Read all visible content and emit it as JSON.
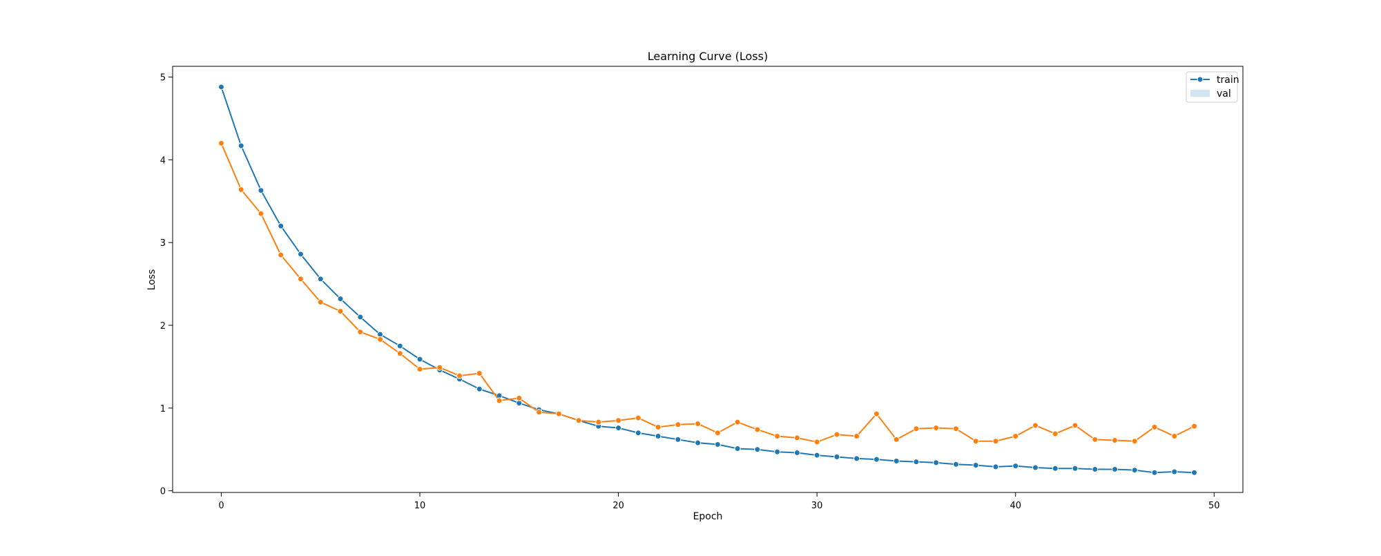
{
  "chart_data": {
    "type": "line",
    "title": "Learning Curve (Loss)",
    "xlabel": "Epoch",
    "ylabel": "Loss",
    "xlim": [
      -2.45,
      51.45
    ],
    "ylim": [
      -0.02,
      5.13
    ],
    "xticks": [
      0,
      10,
      20,
      30,
      40,
      50
    ],
    "yticks": [
      0,
      1,
      2,
      3,
      4,
      5
    ],
    "grid": false,
    "legend_position": "top-right",
    "legend": [
      {
        "label": "train",
        "marker": "line-with-dot",
        "color": "#1f77b4"
      },
      {
        "label": "val",
        "marker": "filled-box",
        "color": "#a6cee3"
      }
    ],
    "x": [
      0,
      1,
      2,
      3,
      4,
      5,
      6,
      7,
      8,
      9,
      10,
      11,
      12,
      13,
      14,
      15,
      16,
      17,
      18,
      19,
      20,
      21,
      22,
      23,
      24,
      25,
      26,
      27,
      28,
      29,
      30,
      31,
      32,
      33,
      34,
      35,
      36,
      37,
      38,
      39,
      40,
      41,
      42,
      43,
      44,
      45,
      46,
      47,
      48,
      49
    ],
    "series": [
      {
        "color": "#1f77b4",
        "values": [
          4.88,
          4.17,
          3.63,
          3.2,
          2.86,
          2.56,
          2.32,
          2.1,
          1.89,
          1.75,
          1.59,
          1.46,
          1.35,
          1.23,
          1.15,
          1.06,
          0.98,
          0.93,
          0.85,
          0.78,
          0.76,
          0.7,
          0.66,
          0.62,
          0.58,
          0.56,
          0.51,
          0.5,
          0.47,
          0.46,
          0.43,
          0.41,
          0.39,
          0.38,
          0.36,
          0.35,
          0.34,
          0.32,
          0.31,
          0.29,
          0.3,
          0.28,
          0.27,
          0.27,
          0.26,
          0.26,
          0.25,
          0.22,
          0.23,
          0.22
        ]
      },
      {
        "color": "#ff7f0e",
        "values": [
          4.2,
          3.64,
          3.35,
          2.85,
          2.56,
          2.28,
          2.17,
          1.92,
          1.83,
          1.66,
          1.47,
          1.49,
          1.39,
          1.42,
          1.09,
          1.12,
          0.95,
          0.93,
          0.85,
          0.83,
          0.85,
          0.88,
          0.77,
          0.8,
          0.81,
          0.7,
          0.83,
          0.74,
          0.66,
          0.64,
          0.59,
          0.68,
          0.66,
          0.93,
          0.62,
          0.75,
          0.76,
          0.75,
          0.6,
          0.6,
          0.66,
          0.79,
          0.69,
          0.79,
          0.62,
          0.61,
          0.6,
          0.77,
          0.66,
          0.78
        ]
      }
    ]
  }
}
